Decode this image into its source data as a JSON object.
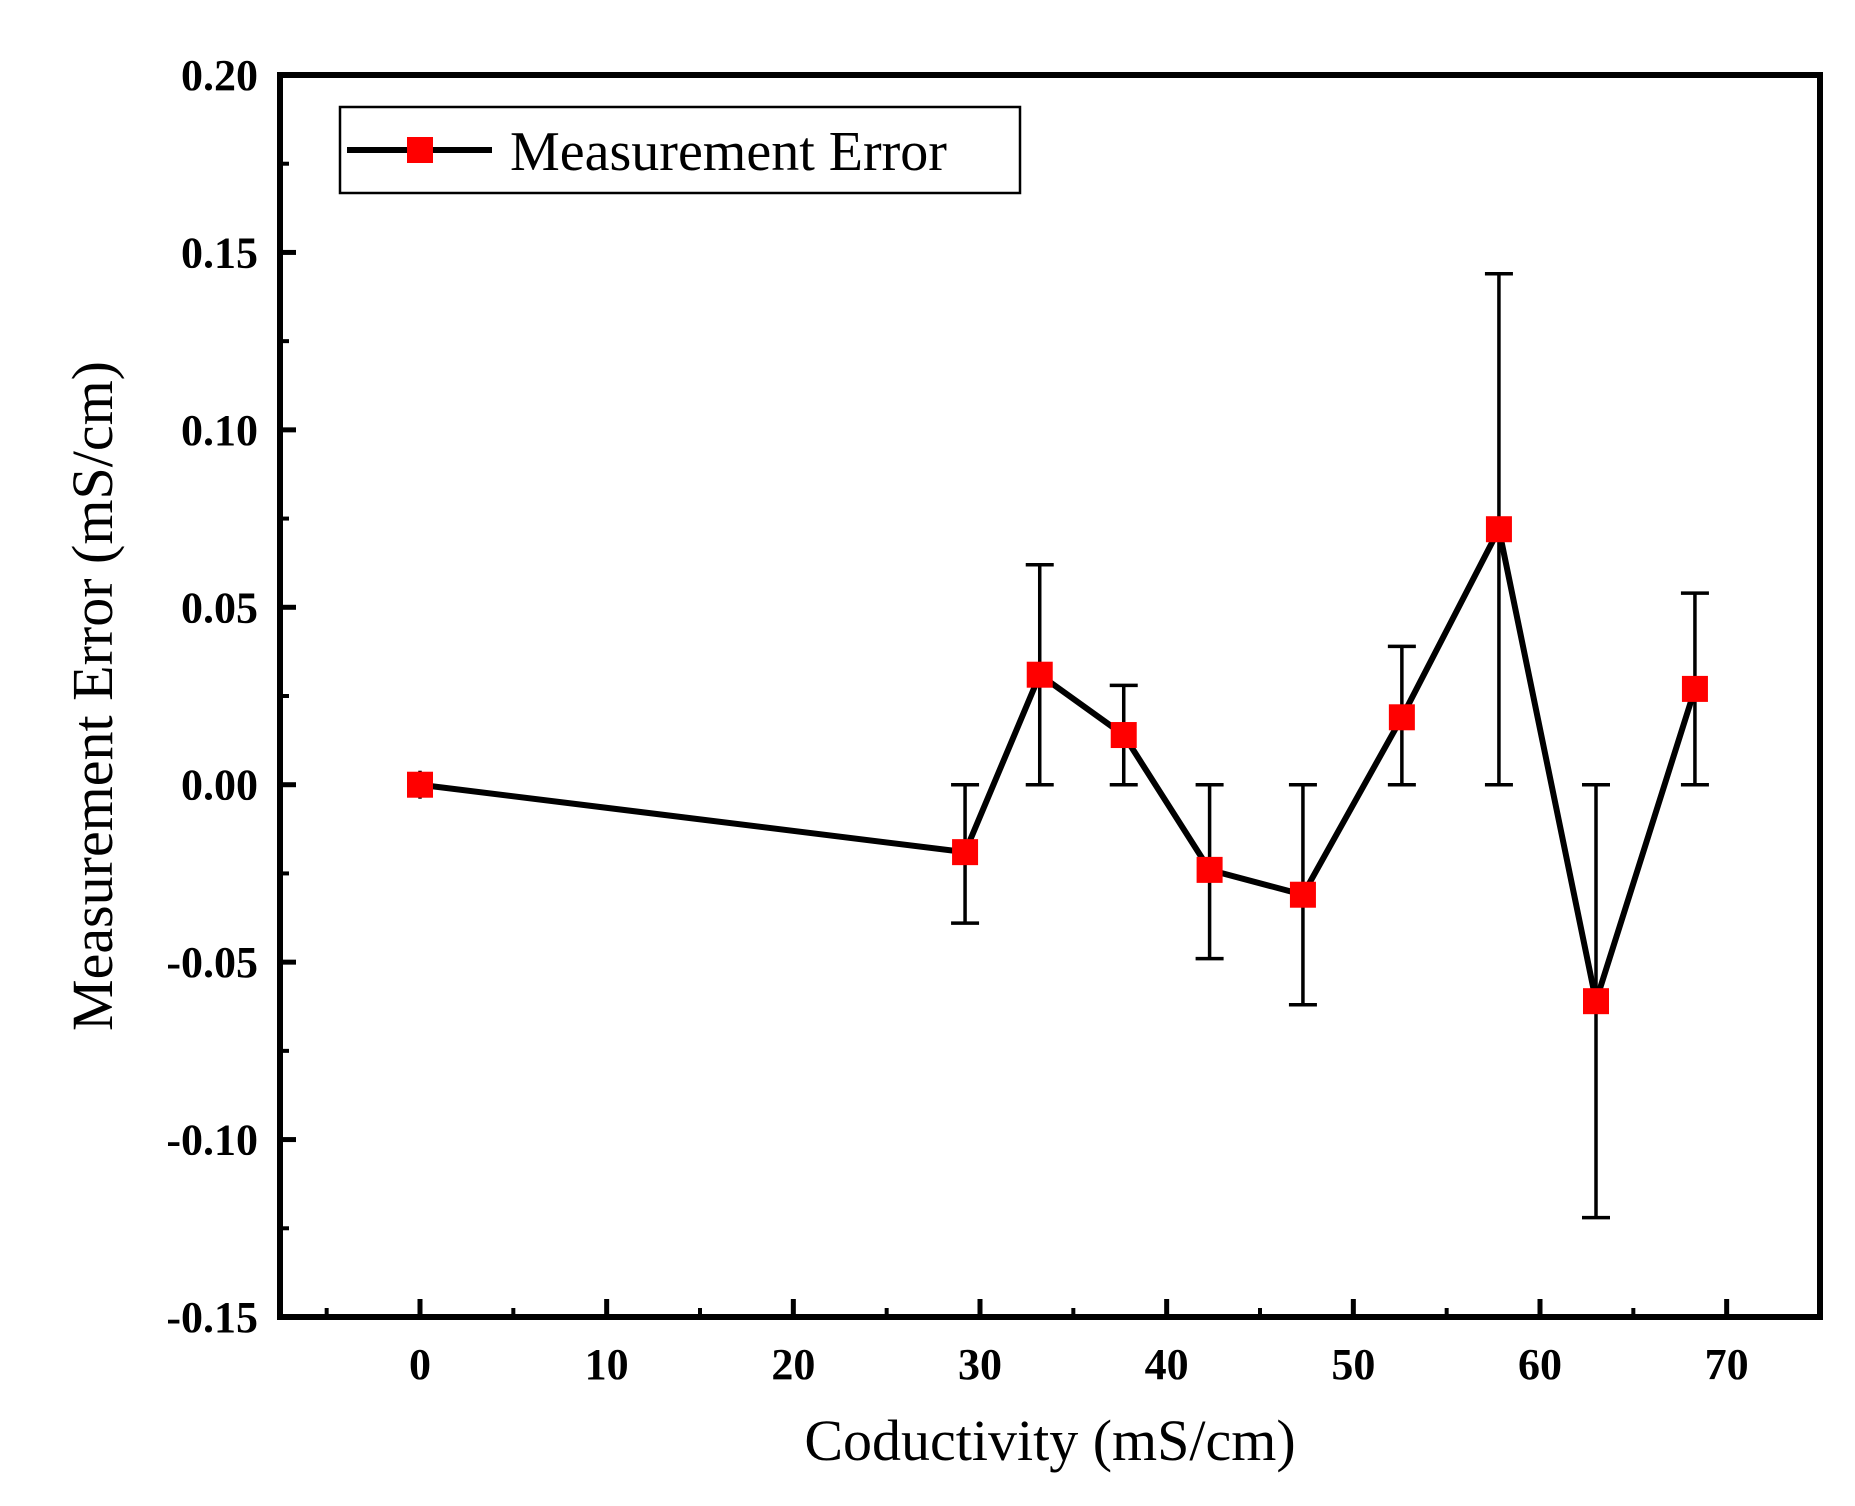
{
  "chart_data": {
    "type": "line",
    "title": "",
    "xlabel": "Coductivity (mS/cm)",
    "ylabel": "Measurement Error (mS/cm)",
    "xlim": [
      -7.5,
      75
    ],
    "ylim": [
      -0.15,
      0.2
    ],
    "xticks": [
      0,
      10,
      20,
      30,
      40,
      50,
      60,
      70
    ],
    "xtick_labels": [
      "0",
      "10",
      "20",
      "30",
      "40",
      "50",
      "60",
      "70"
    ],
    "yticks": [
      -0.15,
      -0.1,
      -0.05,
      0.0,
      0.05,
      0.1,
      0.15,
      0.2
    ],
    "ytick_labels": [
      "-0.15",
      "-0.10",
      "-0.05",
      "0.00",
      "0.05",
      "0.10",
      "0.15",
      "0.20"
    ],
    "grid": false,
    "legend_position": "top-left",
    "series": [
      {
        "name": "Measurement Error",
        "color": "#000000",
        "marker_color": "#ff0000",
        "x": [
          0,
          29.2,
          33.2,
          37.7,
          42.3,
          47.3,
          52.6,
          57.8,
          63.0,
          68.3
        ],
        "y": [
          0.0,
          -0.019,
          0.031,
          0.014,
          -0.024,
          -0.031,
          0.019,
          0.072,
          -0.061,
          0.027
        ],
        "err_low": [
          0.0,
          -0.039,
          0.0,
          0.0,
          -0.049,
          -0.062,
          0.0,
          0.0,
          -0.122,
          0.0
        ],
        "err_high": [
          0.0,
          0.0,
          0.062,
          0.028,
          0.0,
          0.0,
          0.039,
          0.144,
          0.0,
          0.054
        ]
      }
    ]
  }
}
